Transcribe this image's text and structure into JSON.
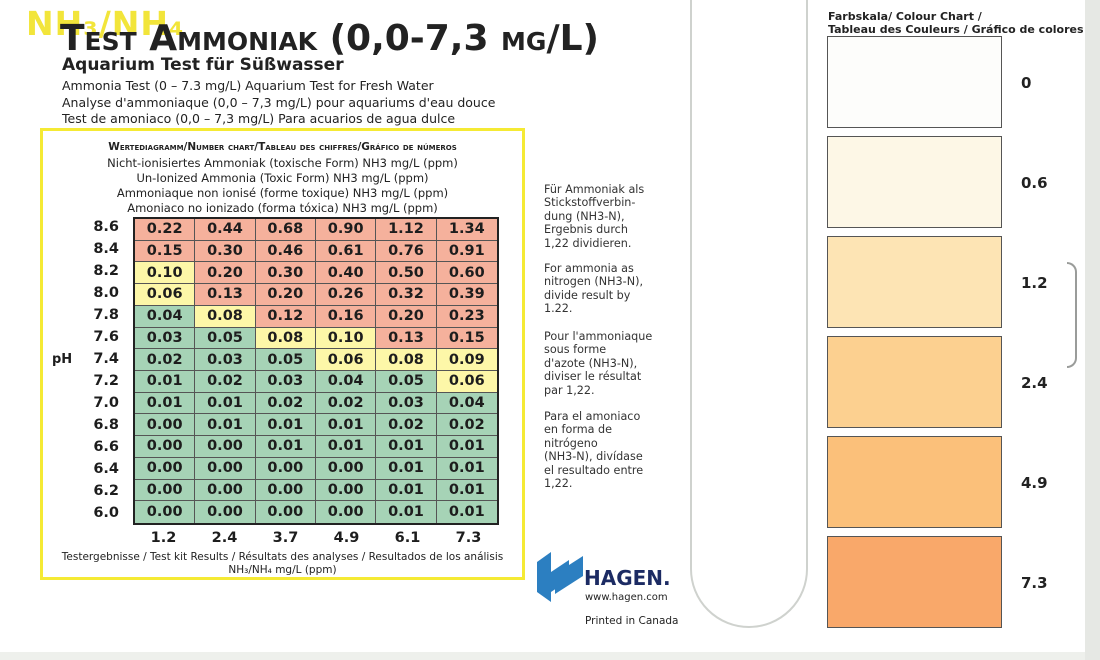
{
  "header": {
    "nh_mark": "NH₃/NH₄",
    "title": "Test Ammoniak (0,0-7,3 mg/L)",
    "subtitle": "Aquarium Test für Süßwasser",
    "lines": [
      "Ammonia Test (0 – 7.3 mg/L) Aquarium Test for Fresh Water",
      "Analyse d'ammoniaque (0,0 – 7,3 mg/L) pour aquariums d'eau douce",
      "Test de amoniaco (0,0 – 7,3 mg/L) Para acuarios de agua dulce"
    ]
  },
  "table": {
    "heading": "Wertediagramm/Number chart/Tableau des chiffres/Gráfico de números",
    "desc": [
      "Nicht-ionisiertes Ammoniak (toxische Form) NH3 mg/L (ppm)",
      "Un-Ionized Ammonia (Toxic Form) NH3 mg/L (ppm)",
      "Ammoniaque non ionisé (forme toxique) NH3 mg/L (ppm)",
      "Amoniaco no ionizado (forma tóxica) NH3 mg/L (ppm)"
    ],
    "ph_axis_label": "pH",
    "row_labels": [
      "8.6",
      "8.4",
      "8.2",
      "8.0",
      "7.8",
      "7.6",
      "7.4",
      "7.2",
      "7.0",
      "6.8",
      "6.6",
      "6.4",
      "6.2",
      "6.0"
    ],
    "col_labels": [
      "1.2",
      "2.4",
      "3.7",
      "4.9",
      "6.1",
      "7.3"
    ],
    "rows": [
      [
        "0.22",
        "0.44",
        "0.68",
        "0.90",
        "1.12",
        "1.34"
      ],
      [
        "0.15",
        "0.30",
        "0.46",
        "0.61",
        "0.76",
        "0.91"
      ],
      [
        "0.10",
        "0.20",
        "0.30",
        "0.40",
        "0.50",
        "0.60"
      ],
      [
        "0.06",
        "0.13",
        "0.20",
        "0.26",
        "0.32",
        "0.39"
      ],
      [
        "0.04",
        "0.08",
        "0.12",
        "0.16",
        "0.20",
        "0.23"
      ],
      [
        "0.03",
        "0.05",
        "0.08",
        "0.10",
        "0.13",
        "0.15"
      ],
      [
        "0.02",
        "0.03",
        "0.05",
        "0.06",
        "0.08",
        "0.09"
      ],
      [
        "0.01",
        "0.02",
        "0.03",
        "0.04",
        "0.05",
        "0.06"
      ],
      [
        "0.01",
        "0.01",
        "0.02",
        "0.02",
        "0.03",
        "0.04"
      ],
      [
        "0.00",
        "0.01",
        "0.01",
        "0.01",
        "0.02",
        "0.02"
      ],
      [
        "0.00",
        "0.00",
        "0.01",
        "0.01",
        "0.01",
        "0.01"
      ],
      [
        "0.00",
        "0.00",
        "0.00",
        "0.00",
        "0.01",
        "0.01"
      ],
      [
        "0.00",
        "0.00",
        "0.00",
        "0.00",
        "0.01",
        "0.01"
      ],
      [
        "0.00",
        "0.00",
        "0.00",
        "0.00",
        "0.01",
        "0.01"
      ]
    ],
    "zones": [
      [
        "r",
        "r",
        "r",
        "r",
        "r",
        "r"
      ],
      [
        "r",
        "r",
        "r",
        "r",
        "r",
        "r"
      ],
      [
        "y",
        "r",
        "r",
        "r",
        "r",
        "r"
      ],
      [
        "y",
        "r",
        "r",
        "r",
        "r",
        "r"
      ],
      [
        "g",
        "y",
        "r",
        "r",
        "r",
        "r"
      ],
      [
        "g",
        "g",
        "y",
        "y",
        "r",
        "r"
      ],
      [
        "g",
        "g",
        "g",
        "y",
        "y",
        "y"
      ],
      [
        "g",
        "g",
        "g",
        "g",
        "g",
        "y"
      ],
      [
        "g",
        "g",
        "g",
        "g",
        "g",
        "g"
      ],
      [
        "g",
        "g",
        "g",
        "g",
        "g",
        "g"
      ],
      [
        "g",
        "g",
        "g",
        "g",
        "g",
        "g"
      ],
      [
        "g",
        "g",
        "g",
        "g",
        "g",
        "g"
      ],
      [
        "g",
        "g",
        "g",
        "g",
        "g",
        "g"
      ],
      [
        "g",
        "g",
        "g",
        "g",
        "g",
        "g"
      ]
    ],
    "zone_colors": {
      "r": "#f5b19c",
      "y": "#fdf7a8",
      "g": "#a6d3b6"
    },
    "footer": "Testergebnisse / Test kit Results / Résultats des analyses / Resultados de los análisis",
    "footer_unit": "NH₃/NH₄ mg/L (ppm)"
  },
  "notes": [
    "Für Ammoniak als\nStickstoffverbin-\ndung (NH3-N),\nErgebnis durch\n1,22 dividieren.",
    "For ammonia as\nnitrogen (NH3-N),\ndivide result by\n1.22.",
    "Pour l'ammoniaque\nsous forme\nd'azote (NH3-N),\ndiviser le résultat\npar 1,22.",
    "Para el amoniaco\nen forma de\nnitrógeno\n(NH3-N), divídase\nel resultado entre\n1,22."
  ],
  "brand": {
    "name": "HAGEN.",
    "url": "www.hagen.com",
    "printed": "Printed in Canada",
    "logo_colors": [
      "#2c7fc1",
      "#1c2b63"
    ]
  },
  "colour_chart": {
    "title1": "Farbskala/ Colour Chart /",
    "title2": "Tableau des Couleurs / Gráfico de colores",
    "swatches": [
      {
        "label": "0",
        "color": "#fdfdfb"
      },
      {
        "label": "0.6",
        "color": "#fdf7e6"
      },
      {
        "label": "1.2",
        "color": "#fde4b4"
      },
      {
        "label": "2.4",
        "color": "#fcd090"
      },
      {
        "label": "4.9",
        "color": "#fbc07a"
      },
      {
        "label": "7.3",
        "color": "#f9a86a"
      }
    ]
  }
}
